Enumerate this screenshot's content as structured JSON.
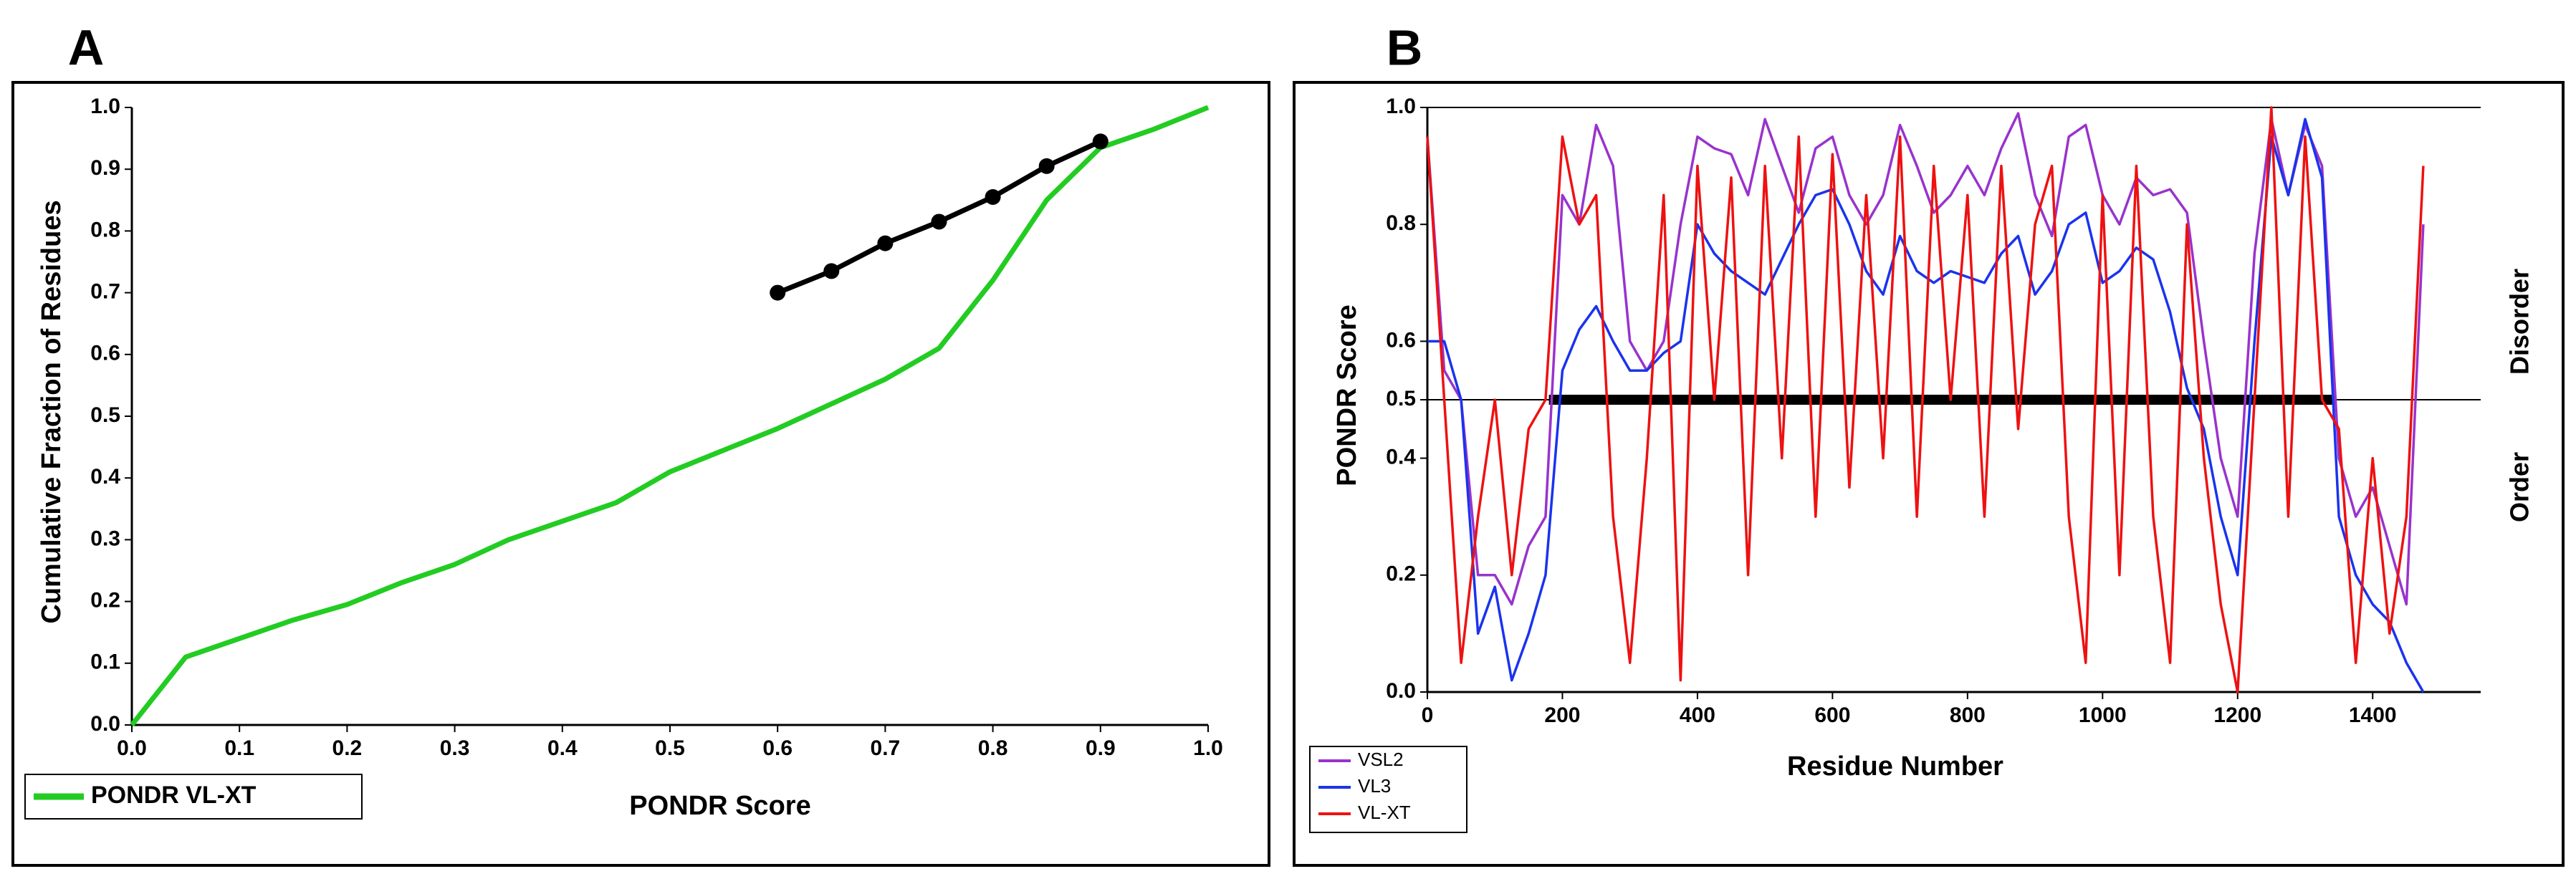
{
  "chart_data": [
    {
      "type": "line",
      "panel": "A",
      "xlabel": "PONDR Score",
      "ylabel": "Cumulative Fraction of Residues",
      "xlim": [
        0,
        1
      ],
      "ylim": [
        0,
        1
      ],
      "xticks": [
        {
          "value": 0,
          "label": "0.0"
        },
        0.1,
        0.2,
        0.3,
        0.4,
        0.5,
        0.6,
        0.7,
        0.8,
        0.9,
        {
          "value": 1,
          "label": "1.0"
        }
      ],
      "yticks": [
        {
          "value": 0,
          "label": "0.0"
        },
        0.1,
        0.2,
        0.3,
        0.4,
        0.5,
        0.6,
        0.7,
        0.8,
        0.9,
        {
          "value": 1,
          "label": "1.0"
        }
      ],
      "legend": "lower-left-outside",
      "series": [
        {
          "name": "PONDR VL-XT",
          "color": "#22cc22",
          "x": [
            0,
            0.05,
            0.1,
            0.15,
            0.2,
            0.25,
            0.3,
            0.35,
            0.4,
            0.45,
            0.5,
            0.55,
            0.6,
            0.65,
            0.7,
            0.75,
            0.8,
            0.85,
            0.9,
            0.95,
            1.0
          ],
          "values": [
            0,
            0.11,
            0.14,
            0.17,
            0.195,
            0.23,
            0.26,
            0.3,
            0.33,
            0.36,
            0.41,
            0.445,
            0.48,
            0.52,
            0.56,
            0.61,
            0.72,
            0.85,
            0.935,
            0.965,
            1.0
          ]
        },
        {
          "color": "#000000",
          "marker": "circle",
          "x": [
            0.6,
            0.65,
            0.7,
            0.75,
            0.8,
            0.85,
            0.9
          ],
          "values": [
            0.7,
            0.735,
            0.78,
            0.815,
            0.855,
            0.905,
            0.945
          ]
        }
      ]
    },
    {
      "type": "line",
      "panel": "B",
      "xlabel": "Residue Number",
      "ylabel": "PONDR Score",
      "side_labels": [
        "Disorder",
        "Order"
      ],
      "xlim": [
        0,
        1560
      ],
      "ylim": [
        0,
        1
      ],
      "xticks": [
        0,
        200,
        400,
        600,
        800,
        1000,
        1200,
        1400
      ],
      "yticks": [
        {
          "value": 0,
          "label": "0.0"
        },
        0.2,
        0.4,
        0.5,
        0.6,
        0.8,
        {
          "value": 1,
          "label": "1.0"
        }
      ],
      "reference_line": 0.5,
      "highlight_x": [
        180,
        1340
      ],
      "legend": "lower-left-outside",
      "x": [
        0,
        25,
        50,
        75,
        100,
        125,
        150,
        175,
        200,
        225,
        250,
        275,
        300,
        325,
        350,
        375,
        400,
        425,
        450,
        475,
        500,
        525,
        550,
        575,
        600,
        625,
        650,
        675,
        700,
        725,
        750,
        775,
        800,
        825,
        850,
        875,
        900,
        925,
        950,
        975,
        1000,
        1025,
        1050,
        1075,
        1100,
        1125,
        1150,
        1175,
        1200,
        1225,
        1250,
        1275,
        1300,
        1325,
        1350,
        1375,
        1400,
        1425,
        1450,
        1475
      ],
      "series": [
        {
          "name": "VSL2",
          "color": "#9933cc",
          "values": [
            0.95,
            0.55,
            0.5,
            0.2,
            0.2,
            0.15,
            0.25,
            0.3,
            0.85,
            0.8,
            0.97,
            0.9,
            0.6,
            0.55,
            0.6,
            0.8,
            0.95,
            0.93,
            0.92,
            0.85,
            0.98,
            0.9,
            0.82,
            0.93,
            0.95,
            0.85,
            0.8,
            0.85,
            0.97,
            0.9,
            0.82,
            0.85,
            0.9,
            0.85,
            0.93,
            0.99,
            0.85,
            0.78,
            0.95,
            0.97,
            0.85,
            0.8,
            0.88,
            0.85,
            0.86,
            0.82,
            0.6,
            0.4,
            0.3,
            0.75,
            0.98,
            0.85,
            0.97,
            0.9,
            0.4,
            0.3,
            0.35,
            0.25,
            0.15,
            0.8
          ]
        },
        {
          "name": "VL3",
          "color": "#1a33ee",
          "values": [
            0.6,
            0.6,
            0.5,
            0.1,
            0.18,
            0.02,
            0.1,
            0.2,
            0.55,
            0.62,
            0.66,
            0.6,
            0.55,
            0.55,
            0.58,
            0.6,
            0.8,
            0.75,
            0.72,
            0.7,
            0.68,
            0.74,
            0.8,
            0.85,
            0.86,
            0.8,
            0.72,
            0.68,
            0.78,
            0.72,
            0.7,
            0.72,
            0.71,
            0.7,
            0.75,
            0.78,
            0.68,
            0.72,
            0.8,
            0.82,
            0.7,
            0.72,
            0.76,
            0.74,
            0.65,
            0.52,
            0.45,
            0.3,
            0.2,
            0.6,
            0.95,
            0.85,
            0.98,
            0.88,
            0.3,
            0.2,
            0.15,
            0.12,
            0.05,
            0.0
          ]
        },
        {
          "name": "VL-XT",
          "color": "#ee1111",
          "values": [
            0.95,
            0.5,
            0.05,
            0.3,
            0.5,
            0.2,
            0.45,
            0.5,
            0.95,
            0.8,
            0.85,
            0.3,
            0.05,
            0.4,
            0.85,
            0.02,
            0.9,
            0.5,
            0.88,
            0.2,
            0.9,
            0.4,
            0.95,
            0.3,
            0.92,
            0.35,
            0.85,
            0.4,
            0.95,
            0.3,
            0.9,
            0.5,
            0.85,
            0.3,
            0.9,
            0.45,
            0.8,
            0.9,
            0.3,
            0.05,
            0.85,
            0.2,
            0.9,
            0.3,
            0.05,
            0.8,
            0.4,
            0.15,
            0.0,
            0.5,
            1.0,
            0.3,
            0.95,
            0.5,
            0.45,
            0.05,
            0.4,
            0.1,
            0.3,
            0.9
          ]
        }
      ]
    }
  ]
}
